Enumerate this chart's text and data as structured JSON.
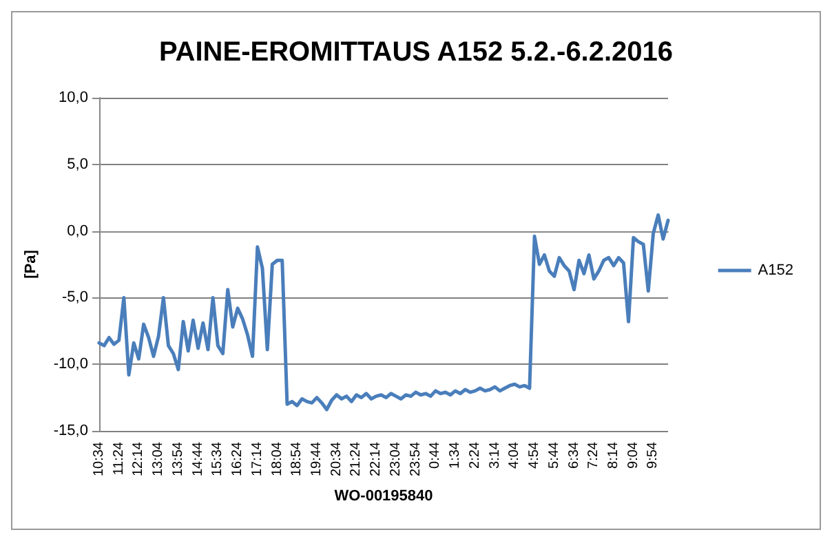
{
  "chart_data": {
    "type": "line",
    "title": "PAINE-EROMITTAUS A152 5.2.-6.2.2016",
    "xlabel": "WO-00195840",
    "ylabel": "[Pa]",
    "categories": [
      "10:34",
      null,
      null,
      null,
      "11:24",
      null,
      null,
      null,
      "12:14",
      null,
      null,
      null,
      "13:04",
      null,
      null,
      null,
      "13:54",
      null,
      null,
      null,
      "14:44",
      null,
      null,
      null,
      "15:34",
      null,
      null,
      null,
      "16:24",
      null,
      null,
      null,
      "17:14",
      null,
      null,
      null,
      "18:04",
      null,
      null,
      null,
      "18:54",
      null,
      null,
      null,
      "19:44",
      null,
      null,
      null,
      "20:34",
      null,
      null,
      null,
      "21:24",
      null,
      null,
      null,
      "22:14",
      null,
      null,
      null,
      "23:04",
      null,
      null,
      null,
      "23:54",
      null,
      null,
      null,
      "0:44",
      null,
      null,
      null,
      "1:34",
      null,
      null,
      null,
      "2:24",
      null,
      null,
      null,
      "3:14",
      null,
      null,
      null,
      "4:04",
      null,
      null,
      null,
      "4:54",
      null,
      null,
      null,
      "5:44",
      null,
      null,
      null,
      "6:34",
      null,
      null,
      null,
      "7:24",
      null,
      null,
      null,
      "8:14",
      null,
      null,
      null,
      "9:04",
      null,
      null,
      null,
      "9:54",
      null,
      null,
      null
    ],
    "series": [
      {
        "name": "A152",
        "color": "#4a7ebb",
        "values": [
          -8.4,
          -8.6,
          -8.0,
          -8.5,
          -8.2,
          -5.0,
          -10.8,
          -8.4,
          -9.6,
          -7.0,
          -8.0,
          -9.4,
          -7.9,
          -5.0,
          -8.6,
          -9.2,
          -10.4,
          -6.8,
          -9.0,
          -6.7,
          -8.8,
          -6.9,
          -8.9,
          -5.0,
          -8.6,
          -9.2,
          -4.4,
          -7.2,
          -5.8,
          -6.6,
          -7.8,
          -9.4,
          -1.2,
          -2.8,
          -8.9,
          -2.5,
          -2.2,
          -2.2,
          -13.0,
          -12.8,
          -13.1,
          -12.6,
          -12.8,
          -12.9,
          -12.5,
          -12.9,
          -13.4,
          -12.7,
          -12.3,
          -12.6,
          -12.4,
          -12.8,
          -12.3,
          -12.5,
          -12.2,
          -12.6,
          -12.4,
          -12.3,
          -12.5,
          -12.2,
          -12.4,
          -12.6,
          -12.3,
          -12.4,
          -12.1,
          -12.3,
          -12.2,
          -12.4,
          -12.0,
          -12.2,
          -12.1,
          -12.3,
          -12.0,
          -12.2,
          -11.9,
          -12.1,
          -12.0,
          -11.8,
          -12.0,
          -11.9,
          -11.7,
          -12.0,
          -11.8,
          -11.6,
          -11.5,
          -11.7,
          -11.6,
          -11.8,
          -0.4,
          -2.5,
          -1.8,
          -3.0,
          -3.4,
          -2.0,
          -2.6,
          -3.0,
          -4.4,
          -2.2,
          -3.2,
          -1.8,
          -3.6,
          -3.0,
          -2.2,
          -2.0,
          -2.6,
          -2.0,
          -2.4,
          -6.8,
          -0.5,
          -0.8,
          -1.0,
          -4.5,
          -0.2,
          1.2,
          -0.6,
          0.8
        ]
      }
    ],
    "ylim": [
      -15,
      10
    ],
    "yticks": [
      {
        "value": -15,
        "label": "-15,0"
      },
      {
        "value": -10,
        "label": "-10,0"
      },
      {
        "value": -5,
        "label": "-5,0"
      },
      {
        "value": 0,
        "label": "0,0"
      },
      {
        "value": 5,
        "label": "5,0"
      },
      {
        "value": 10,
        "label": "10,0"
      }
    ],
    "grid": "y",
    "legend": "right",
    "marker": "none",
    "line_style": "solid"
  }
}
